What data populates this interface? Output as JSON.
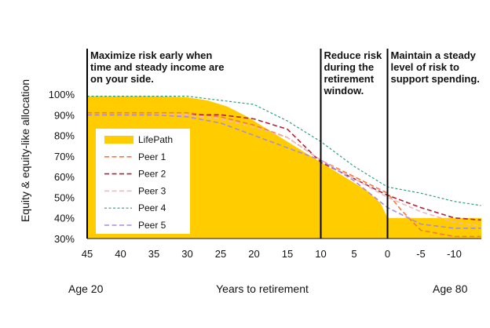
{
  "chart_data": {
    "type": "area",
    "ylabel": "Equity & equity-like allocation",
    "xlabel": "Years to retirement",
    "x_left_label": "Age 20",
    "x_right_label": "Age 80",
    "x_ticks": [
      45,
      40,
      35,
      30,
      25,
      20,
      15,
      10,
      5,
      0,
      -5,
      -10
    ],
    "x_tick_labels": [
      "45",
      "40",
      "35",
      "30",
      "25",
      "20",
      "15",
      "10",
      "5",
      "0",
      "-5",
      "-10"
    ],
    "x_range": [
      45,
      -14
    ],
    "y_ticks": [
      30,
      40,
      50,
      60,
      70,
      80,
      90,
      100
    ],
    "y_tick_labels": [
      "30%",
      "40%",
      "50%",
      "60%",
      "70%",
      "80%",
      "90%",
      "100%"
    ],
    "y_range": [
      30,
      100
    ],
    "annotations": [
      {
        "x": 45,
        "lines": [
          "Maximize risk early when",
          "time and steady income are",
          "on your side."
        ]
      },
      {
        "x": 10,
        "lines": [
          "Reduce risk",
          "during the",
          "retirement",
          "window."
        ]
      },
      {
        "x": 0,
        "lines": [
          "Maintain a steady",
          "level of risk to",
          "support spending."
        ]
      }
    ],
    "series": [
      {
        "name": "LifePath",
        "style": "area",
        "color": "#FFCC00",
        "x": [
          45,
          40,
          35,
          30,
          27,
          24,
          21,
          18,
          15,
          12,
          10,
          7,
          5,
          3,
          1,
          0,
          -2,
          -5,
          -10,
          -14
        ],
        "y": [
          99,
          99,
          99,
          98.5,
          97,
          94,
          89,
          83,
          77,
          71,
          67,
          61,
          57,
          53,
          47,
          40,
          40,
          40,
          40,
          40
        ]
      },
      {
        "name": "Peer 1",
        "style": "dash",
        "color": "#F47A3A",
        "x": [
          45,
          40,
          35,
          30,
          25,
          20,
          15,
          10,
          5,
          0,
          -2,
          -5,
          -10,
          -14
        ],
        "y": [
          91,
          91,
          91,
          91,
          89,
          85,
          79,
          68,
          60,
          52,
          44,
          34,
          31,
          31
        ]
      },
      {
        "name": "Peer 2",
        "style": "dash",
        "color": "#B0223B",
        "x": [
          45,
          40,
          35,
          30,
          25,
          20,
          15,
          10,
          5,
          0,
          -5,
          -10,
          -14
        ],
        "y": [
          90,
          90,
          90,
          90,
          90,
          88,
          83,
          67,
          59,
          51,
          45,
          40,
          39
        ]
      },
      {
        "name": "Peer 3",
        "style": "dash",
        "color": "#F2B8BF",
        "x": [
          45,
          40,
          35,
          30,
          25,
          20,
          15,
          10,
          5,
          0,
          -5,
          -10,
          -14
        ],
        "y": [
          90,
          90,
          90,
          90,
          88,
          84,
          79,
          68,
          59,
          50,
          43,
          38,
          36
        ]
      },
      {
        "name": "Peer 4",
        "style": "dot",
        "color": "#2E9E82",
        "x": [
          45,
          40,
          35,
          30,
          25,
          20,
          15,
          10,
          5,
          0,
          -5,
          -10,
          -14
        ],
        "y": [
          99,
          99,
          99,
          99,
          97,
          95,
          87,
          77,
          65,
          55,
          52,
          48,
          46
        ]
      },
      {
        "name": "Peer 5",
        "style": "dash",
        "color": "#A98BE0",
        "x": [
          45,
          40,
          35,
          30,
          25,
          20,
          15,
          10,
          5,
          0,
          -5,
          -10,
          -14
        ],
        "y": [
          90,
          90,
          90,
          89,
          86,
          80,
          74,
          68,
          58,
          45,
          37,
          35,
          35
        ]
      }
    ],
    "legend_placement": "center-left",
    "grid": false
  }
}
